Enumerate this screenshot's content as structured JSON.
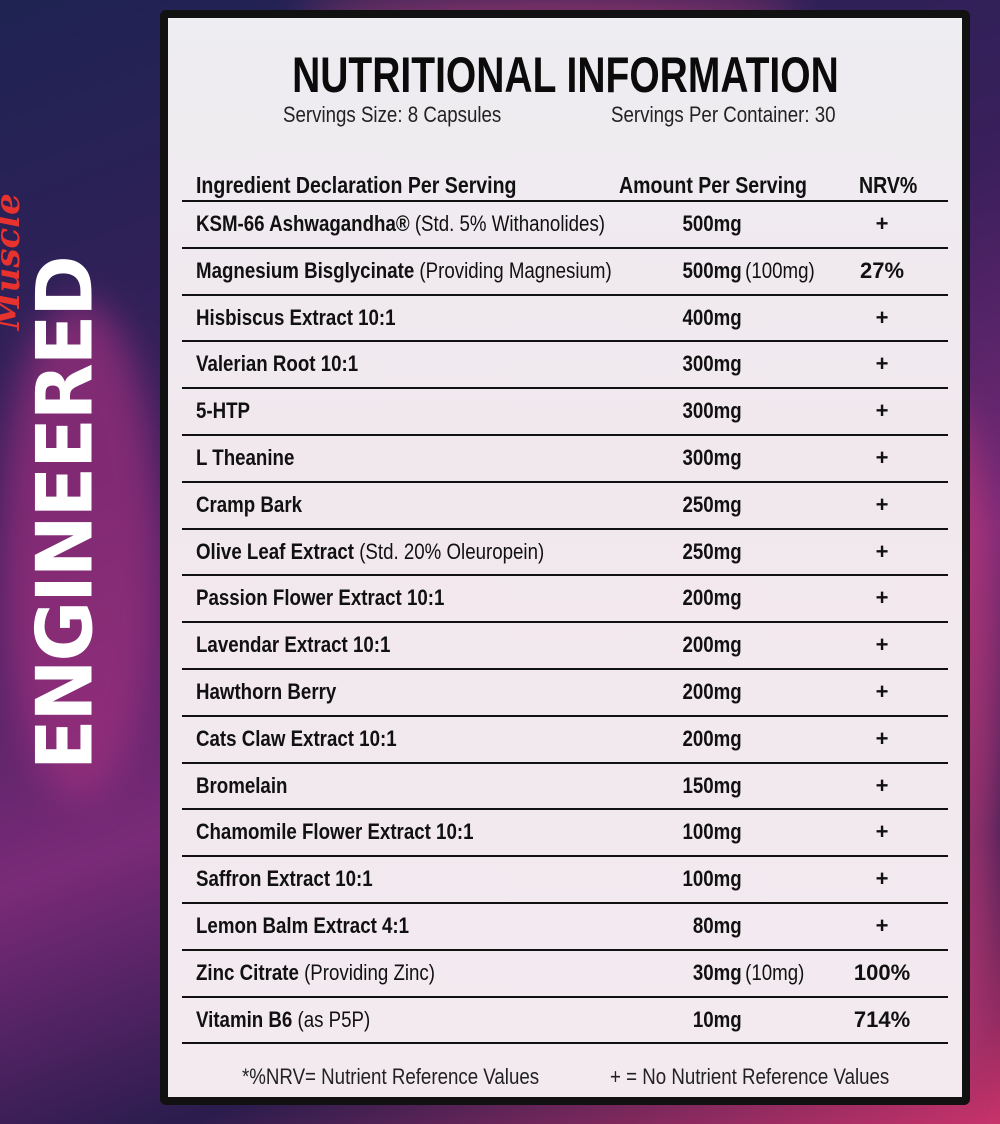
{
  "brand": {
    "logo_main": "ENGINEERED",
    "logo_script": "Muscle"
  },
  "title": "NUTRITIONAL INFORMATION",
  "serving_size": "Servings Size: 8 Capsules",
  "servings_per_container": "Servings Per Container: 30",
  "headers": {
    "ingredient": "Ingredient Declaration Per Serving",
    "amount": "Amount Per Serving",
    "nrv": "NRV%"
  },
  "rows": [
    {
      "name": "KSM-66 Ashwagandha®",
      "detail": " (Std. 5% Withanolides)",
      "amount": "500mg",
      "amount_detail": "",
      "nrv": "+"
    },
    {
      "name": "Magnesium Bisglycinate",
      "detail": " (Providing Magnesium)",
      "amount": "500mg",
      "amount_detail": "(100mg)",
      "nrv": "27%"
    },
    {
      "name": "Hisbiscus Extract 10:1",
      "detail": "",
      "amount": "400mg",
      "amount_detail": "",
      "nrv": "+"
    },
    {
      "name": "Valerian Root 10:1",
      "detail": "",
      "amount": "300mg",
      "amount_detail": "",
      "nrv": "+"
    },
    {
      "name": "5-HTP",
      "detail": "",
      "amount": "300mg",
      "amount_detail": "",
      "nrv": "+"
    },
    {
      "name": "L Theanine",
      "detail": "",
      "amount": "300mg",
      "amount_detail": "",
      "nrv": "+"
    },
    {
      "name": "Cramp Bark",
      "detail": "",
      "amount": "250mg",
      "amount_detail": "",
      "nrv": "+"
    },
    {
      "name": "Olive Leaf Extract",
      "detail": " (Std. 20% Oleuropein)",
      "amount": "250mg",
      "amount_detail": "",
      "nrv": "+"
    },
    {
      "name": "Passion Flower Extract 10:1",
      "detail": "",
      "amount": "200mg",
      "amount_detail": "",
      "nrv": "+"
    },
    {
      "name": "Lavendar Extract 10:1",
      "detail": "",
      "amount": "200mg",
      "amount_detail": "",
      "nrv": "+"
    },
    {
      "name": "Hawthorn Berry",
      "detail": "",
      "amount": "200mg",
      "amount_detail": "",
      "nrv": "+"
    },
    {
      "name": "Cats Claw Extract 10:1",
      "detail": "",
      "amount": "200mg",
      "amount_detail": "",
      "nrv": "+"
    },
    {
      "name": "Bromelain",
      "detail": "",
      "amount": "150mg",
      "amount_detail": "",
      "nrv": "+"
    },
    {
      "name": "Chamomile Flower Extract 10:1",
      "detail": "",
      "amount": "100mg",
      "amount_detail": "",
      "nrv": "+"
    },
    {
      "name": "Saffron Extract 10:1",
      "detail": "",
      "amount": "100mg",
      "amount_detail": "",
      "nrv": "+"
    },
    {
      "name": "Lemon Balm Extract 4:1",
      "detail": "",
      "amount": "80mg",
      "amount_detail": "",
      "nrv": "+"
    },
    {
      "name": "Zinc Citrate",
      "detail": " (Providing Zinc)",
      "amount": "30mg",
      "amount_detail": "(10mg)",
      "nrv": "100%"
    },
    {
      "name": "Vitamin B6",
      "detail": " (as P5P)",
      "amount": "10mg",
      "amount_detail": "",
      "nrv": "714%"
    }
  ],
  "footer": {
    "nrv_note": "*%NRV= Nutrient Reference Values",
    "plus_note": "+ = No Nutrient Reference Values"
  }
}
